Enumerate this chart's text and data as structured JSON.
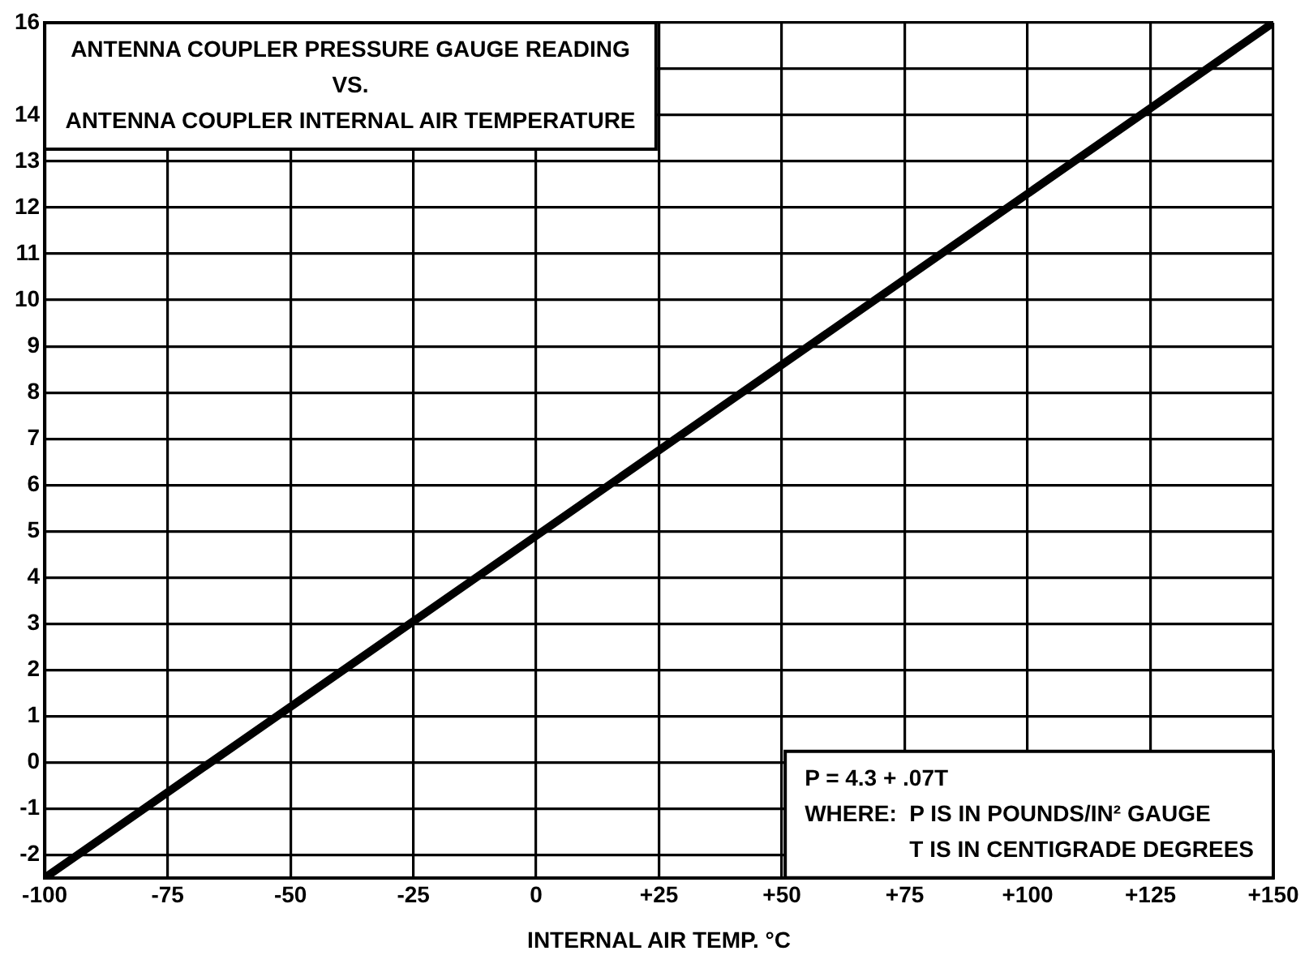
{
  "chart_data": {
    "type": "line",
    "title": "ANTENNA COUPLER PRESSURE GAUGE READING\nVS.\nANTENNA COUPLER INTERNAL AIR TEMPERATURE",
    "xlabel": "INTERNAL AIR TEMP. °C",
    "annotations": [
      "P = 4.3 + .07T",
      "WHERE:  P IS IN POUNDS/IN² GAUGE",
      "T IS IN CENTIGRADE DEGREES"
    ],
    "x": [
      -100,
      150
    ],
    "series": [
      {
        "color": "#000000",
        "values": [
          -2.5,
          16
        ]
      }
    ],
    "xlim": [
      -100,
      150
    ],
    "xticks": [
      -100,
      -75,
      -50,
      -25,
      0,
      {
        "value": 25,
        "label": "+25"
      },
      {
        "value": 50,
        "label": "+50"
      },
      {
        "value": 75,
        "label": "+75"
      },
      {
        "value": 100,
        "label": "+100"
      },
      {
        "value": 125,
        "label": "+125"
      },
      {
        "value": 150,
        "label": "+150"
      }
    ],
    "ylim": [
      -2.5,
      16
    ],
    "yticks": [
      -2,
      -1,
      0,
      1,
      2,
      3,
      4,
      5,
      6,
      7,
      8,
      9,
      10,
      11,
      12,
      13,
      14,
      {
        "value": 15,
        "label": null
      },
      16
    ],
    "grid": true,
    "legend": false,
    "marker": "none",
    "line_style": "solid"
  }
}
